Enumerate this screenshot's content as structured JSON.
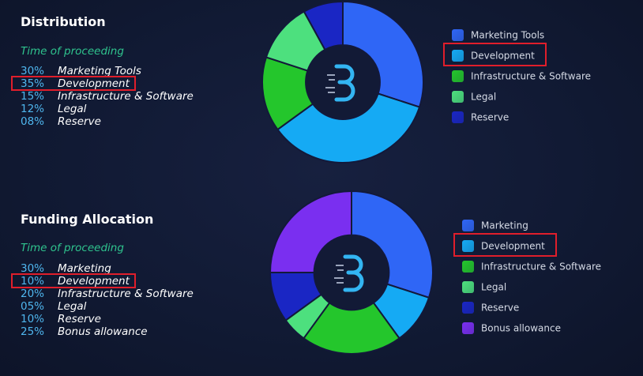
{
  "sections": [
    {
      "title": "Distribution",
      "subtitle": "Time of proceeding",
      "highlight_index": 1,
      "legend_highlight_index": 1,
      "rows": [
        {
          "pct": "30%",
          "label": "Marketing Tools"
        },
        {
          "pct": "35%",
          "label": "Development"
        },
        {
          "pct": "15%",
          "label": "Infrastructure & Software"
        },
        {
          "pct": "12%",
          "label": "Legal"
        },
        {
          "pct": "08%",
          "label": "Reserve"
        }
      ],
      "legend": [
        {
          "label": "Marketing Tools",
          "color": "#2f66f6"
        },
        {
          "label": "Development",
          "color": "#15aaf4"
        },
        {
          "label": "Infrastructure & Software",
          "color": "#24c62c"
        },
        {
          "label": "Legal",
          "color": "#4de07e"
        },
        {
          "label": "Reserve",
          "color": "#1a26c4"
        }
      ],
      "center_icon": "b-logo-icon"
    },
    {
      "title": "Funding Allocation",
      "subtitle": "Time of proceeding",
      "highlight_index": 1,
      "legend_highlight_index": 1,
      "rows": [
        {
          "pct": "30%",
          "label": "Marketing"
        },
        {
          "pct": "10%",
          "label": "Development"
        },
        {
          "pct": "20%",
          "label": "Infrastructure & Software"
        },
        {
          "pct": "05%",
          "label": "Legal"
        },
        {
          "pct": "10%",
          "label": "Reserve"
        },
        {
          "pct": "25%",
          "label": "Bonus allowance"
        }
      ],
      "legend": [
        {
          "label": "Marketing",
          "color": "#2f66f6"
        },
        {
          "label": "Development",
          "color": "#15aaf4"
        },
        {
          "label": "Infrastructure & Software",
          "color": "#24c62c"
        },
        {
          "label": "Legal",
          "color": "#4de07e"
        },
        {
          "label": "Reserve",
          "color": "#1a26c4"
        },
        {
          "label": "Bonus allowance",
          "color": "#7a2ff0"
        }
      ],
      "center_icon": "b-logo-icon"
    }
  ],
  "chart_data": [
    {
      "type": "pie",
      "categories": [
        "Marketing Tools",
        "Development",
        "Infrastructure & Software",
        "Legal",
        "Reserve"
      ],
      "values": [
        30,
        35,
        15,
        12,
        8
      ],
      "colors": [
        "#2f66f6",
        "#15aaf4",
        "#24c62c",
        "#4de07e",
        "#1a26c4"
      ],
      "title": "Distribution",
      "legend": "right"
    },
    {
      "type": "pie",
      "categories": [
        "Marketing",
        "Development",
        "Infrastructure & Software",
        "Legal",
        "Reserve",
        "Bonus allowance"
      ],
      "values": [
        30,
        10,
        20,
        5,
        10,
        25
      ],
      "colors": [
        "#2f66f6",
        "#15aaf4",
        "#24c62c",
        "#4de07e",
        "#1a26c4",
        "#7a2ff0"
      ],
      "title": "Funding Allocation",
      "legend": "right"
    }
  ]
}
